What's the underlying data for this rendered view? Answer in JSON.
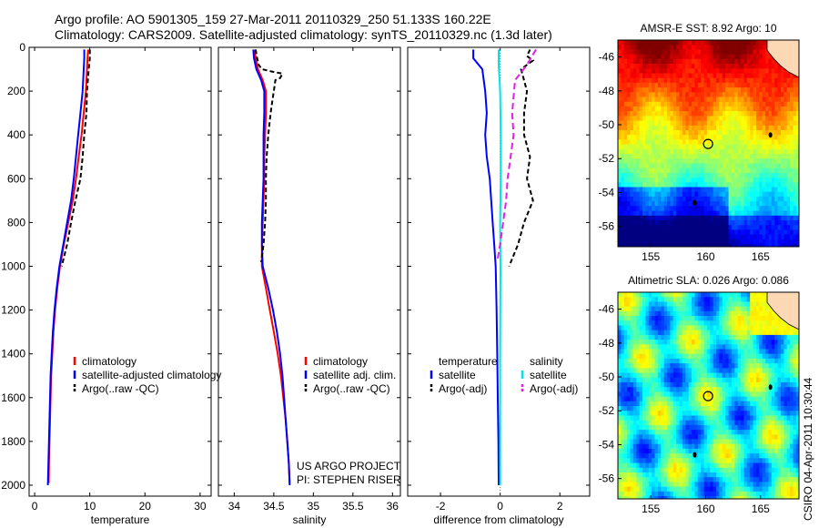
{
  "header": {
    "line1": "Argo profile: AO 5901305_159 27-Mar-2011 20110329_250 51.133S 160.22E",
    "line2": "Climatology: CARS2009. Satellite-adjusted climatology: synTS_20110329.nc (1.3d later)"
  },
  "credits": {
    "project": "US ARGO PROJECT",
    "pi": "PI: STEPHEN RISER",
    "stamp": "CSIRO 04-Apr-2011 10:30:44"
  },
  "colors": {
    "climatology": "#ff0000",
    "satellite": "#0000ff",
    "argo": "#000000",
    "satellite_salinity": "#00e5e5",
    "argo_salinity": "#e020e0"
  },
  "chart_data": [
    {
      "type": "line",
      "id": "temperature-panel",
      "xlabel": "temperature",
      "ylabel": "",
      "xlim": [
        -1,
        32
      ],
      "ylim": [
        2050,
        0
      ],
      "xticks": [
        "0",
        "10",
        "20",
        "30"
      ],
      "xtick_values": [
        0,
        10,
        20,
        30
      ],
      "yticks": [
        "0",
        "200",
        "400",
        "600",
        "800",
        "1000",
        "1200",
        "1400",
        "1600",
        "1800",
        "2000"
      ],
      "ytick_values": [
        0,
        200,
        400,
        600,
        800,
        1000,
        1200,
        1400,
        1600,
        1800,
        2000
      ],
      "legend": [
        "climatology",
        "satellite-adjusted climatology",
        "Argo(..raw -QC)"
      ],
      "series": [
        {
          "name": "climatology",
          "color": "#ff0000",
          "dash": "",
          "points": [
            [
              9.7,
              10
            ],
            [
              9.6,
              50
            ],
            [
              9.5,
              100
            ],
            [
              9.3,
              200
            ],
            [
              8.9,
              300
            ],
            [
              8.5,
              400
            ],
            [
              8.0,
              500
            ],
            [
              7.5,
              600
            ],
            [
              6.9,
              700
            ],
            [
              6.1,
              800
            ],
            [
              5.3,
              900
            ],
            [
              4.6,
              1000
            ],
            [
              4.1,
              1100
            ],
            [
              3.7,
              1200
            ],
            [
              3.4,
              1300
            ],
            [
              3.2,
              1400
            ],
            [
              3.0,
              1500
            ],
            [
              2.9,
              1600
            ],
            [
              2.8,
              1700
            ],
            [
              2.7,
              1800
            ],
            [
              2.6,
              1900
            ],
            [
              2.55,
              1990
            ]
          ]
        },
        {
          "name": "satellite-adjusted climatology",
          "color": "#0000ff",
          "dash": "",
          "points": [
            [
              9.0,
              10
            ],
            [
              9.0,
              50
            ],
            [
              8.9,
              100
            ],
            [
              8.7,
              200
            ],
            [
              8.3,
              300
            ],
            [
              7.9,
              400
            ],
            [
              7.5,
              500
            ],
            [
              7.1,
              600
            ],
            [
              6.6,
              700
            ],
            [
              5.9,
              800
            ],
            [
              5.2,
              900
            ],
            [
              4.5,
              1000
            ],
            [
              4.0,
              1100
            ],
            [
              3.6,
              1200
            ],
            [
              3.3,
              1300
            ],
            [
              3.1,
              1400
            ],
            [
              2.9,
              1500
            ],
            [
              2.8,
              1600
            ],
            [
              2.7,
              1700
            ],
            [
              2.6,
              1800
            ],
            [
              2.5,
              1900
            ],
            [
              2.4,
              2000
            ]
          ]
        },
        {
          "name": "Argo(..raw -QC)",
          "color": "#000000",
          "dash": "5,3",
          "points": [
            [
              10.0,
              10
            ],
            [
              10.0,
              50
            ],
            [
              9.8,
              100
            ],
            [
              9.5,
              200
            ],
            [
              9.4,
              300
            ],
            [
              9.0,
              400
            ],
            [
              8.7,
              500
            ],
            [
              8.3,
              600
            ],
            [
              7.4,
              700
            ],
            [
              6.6,
              800
            ],
            [
              5.9,
              900
            ],
            [
              4.9,
              1000
            ]
          ]
        }
      ]
    },
    {
      "type": "line",
      "id": "salinity-panel",
      "xlabel": "salinity",
      "xlim": [
        33.8,
        36.1
      ],
      "ylim": [
        2050,
        0
      ],
      "xticks": [
        "34",
        "34.5",
        "35",
        "35.5",
        "36"
      ],
      "xtick_values": [
        34,
        34.5,
        35,
        35.5,
        36
      ],
      "legend": [
        "climatology",
        "satellite adj. clim.",
        "Argo(..raw -QC)"
      ],
      "series": [
        {
          "name": "climatology",
          "color": "#ff0000",
          "dash": "",
          "points": [
            [
              34.26,
              10
            ],
            [
              34.27,
              50
            ],
            [
              34.3,
              100
            ],
            [
              34.36,
              150
            ],
            [
              34.4,
              200
            ],
            [
              34.4,
              300
            ],
            [
              34.39,
              400
            ],
            [
              34.38,
              500
            ],
            [
              34.38,
              600
            ],
            [
              34.37,
              700
            ],
            [
              34.36,
              800
            ],
            [
              34.35,
              900
            ],
            [
              34.35,
              1000
            ],
            [
              34.4,
              1100
            ],
            [
              34.45,
              1200
            ],
            [
              34.5,
              1300
            ],
            [
              34.55,
              1400
            ],
            [
              34.59,
              1500
            ],
            [
              34.62,
              1600
            ],
            [
              34.65,
              1700
            ],
            [
              34.67,
              1800
            ],
            [
              34.69,
              1900
            ],
            [
              34.7,
              1990
            ]
          ]
        },
        {
          "name": "satellite adj. clim.",
          "color": "#0000ff",
          "dash": "",
          "points": [
            [
              34.24,
              10
            ],
            [
              34.25,
              50
            ],
            [
              34.28,
              100
            ],
            [
              34.34,
              150
            ],
            [
              34.38,
              200
            ],
            [
              34.38,
              300
            ],
            [
              34.37,
              400
            ],
            [
              34.37,
              500
            ],
            [
              34.37,
              600
            ],
            [
              34.36,
              700
            ],
            [
              34.35,
              800
            ],
            [
              34.35,
              900
            ],
            [
              34.36,
              1000
            ],
            [
              34.43,
              1100
            ],
            [
              34.49,
              1200
            ],
            [
              34.54,
              1300
            ],
            [
              34.58,
              1400
            ],
            [
              34.61,
              1500
            ],
            [
              34.63,
              1600
            ],
            [
              34.65,
              1700
            ],
            [
              34.67,
              1800
            ],
            [
              34.69,
              1900
            ],
            [
              34.7,
              2000
            ]
          ]
        },
        {
          "name": "Argo(..raw -QC)",
          "color": "#000000",
          "dash": "5,3",
          "points": [
            [
              34.27,
              10
            ],
            [
              34.29,
              50
            ],
            [
              34.31,
              80
            ],
            [
              34.35,
              100
            ],
            [
              34.47,
              110
            ],
            [
              34.61,
              120
            ],
            [
              34.58,
              140
            ],
            [
              34.52,
              150
            ],
            [
              34.5,
              200
            ],
            [
              34.48,
              250
            ],
            [
              34.46,
              300
            ],
            [
              34.43,
              400
            ],
            [
              34.41,
              500
            ],
            [
              34.4,
              600
            ],
            [
              34.4,
              700
            ],
            [
              34.39,
              800
            ],
            [
              34.37,
              900
            ],
            [
              34.34,
              980
            ]
          ]
        }
      ]
    },
    {
      "type": "line",
      "id": "difference-panel",
      "xlabel": "difference from climatology",
      "xlim": [
        -3.1,
        3.0
      ],
      "ylim": [
        2050,
        0
      ],
      "xticks": [
        "-2",
        "0",
        "2"
      ],
      "xtick_values": [
        -2,
        0,
        2
      ],
      "legend_titles": [
        "temperature",
        "salinity"
      ],
      "legend": [
        "satellite",
        "Argo(-adj)",
        "satellite",
        "Argo(-adj)"
      ],
      "zero_line": 0,
      "series": [
        {
          "name": "satellite",
          "group": "temperature",
          "color": "#0000ff",
          "dash": "",
          "points": [
            [
              -0.9,
              10
            ],
            [
              -0.9,
              50
            ],
            [
              -0.6,
              100
            ],
            [
              -0.5,
              200
            ],
            [
              -0.45,
              300
            ],
            [
              -0.5,
              400
            ],
            [
              -0.45,
              500
            ],
            [
              -0.35,
              600
            ],
            [
              -0.3,
              700
            ],
            [
              -0.25,
              800
            ],
            [
              -0.2,
              900
            ],
            [
              -0.15,
              1000
            ],
            [
              -0.12,
              1200
            ],
            [
              -0.1,
              1400
            ],
            [
              -0.08,
              1600
            ],
            [
              -0.06,
              1800
            ],
            [
              -0.05,
              2000
            ]
          ]
        },
        {
          "name": "Argo(-adj)",
          "group": "temperature",
          "color": "#000000",
          "dash": "5,3",
          "points": [
            [
              1.0,
              10
            ],
            [
              0.9,
              40
            ],
            [
              1.1,
              60
            ],
            [
              0.7,
              100
            ],
            [
              0.9,
              200
            ],
            [
              0.8,
              300
            ],
            [
              0.8,
              400
            ],
            [
              1.0,
              500
            ],
            [
              0.9,
              600
            ],
            [
              1.1,
              700
            ],
            [
              0.8,
              800
            ],
            [
              0.6,
              900
            ],
            [
              0.3,
              1000
            ]
          ]
        },
        {
          "name": "satellite",
          "group": "salinity",
          "color": "#00e5e5",
          "dash": "",
          "points": [
            [
              -0.05,
              10
            ],
            [
              -0.05,
              80
            ],
            [
              0.0,
              200
            ],
            [
              0.02,
              400
            ],
            [
              0.02,
              600
            ],
            [
              0.0,
              800
            ],
            [
              0.01,
              1000
            ],
            [
              0.0,
              1400
            ],
            [
              0.0,
              2000
            ]
          ]
        },
        {
          "name": "Argo(-adj)",
          "group": "salinity",
          "color": "#e020e0",
          "dash": "7,4",
          "points": [
            [
              1.2,
              10
            ],
            [
              0.9,
              80
            ],
            [
              0.5,
              150
            ],
            [
              0.4,
              300
            ],
            [
              0.45,
              400
            ],
            [
              0.35,
              500
            ],
            [
              0.25,
              600
            ],
            [
              0.2,
              700
            ],
            [
              0.1,
              800
            ],
            [
              0.0,
              900
            ],
            [
              -0.1,
              980
            ]
          ]
        }
      ]
    },
    {
      "type": "heatmap",
      "id": "sst-map",
      "title": "AMSR-E SST: 8.92 Argo: 10",
      "xlim": [
        152,
        168.5
      ],
      "ylim": [
        -57.2,
        -45
      ],
      "xticks": [
        "155",
        "160",
        "165"
      ],
      "xtick_values": [
        155,
        160,
        165
      ],
      "yticks": [
        "-46",
        "-48",
        "-50",
        "-52",
        "-54",
        "-56"
      ],
      "ytick_values": [
        -46,
        -48,
        -50,
        -52,
        -54,
        -56
      ],
      "float_position": [
        160.22,
        -51.133
      ]
    },
    {
      "type": "heatmap",
      "id": "sla-map",
      "title": "Altimetric SLA: 0.026 Argo: 0.086",
      "xlim": [
        152,
        168.5
      ],
      "ylim": [
        -57.2,
        -45
      ],
      "xticks": [
        "155",
        "160",
        "165"
      ],
      "xtick_values": [
        155,
        160,
        165
      ],
      "yticks": [
        "-46",
        "-48",
        "-50",
        "-52",
        "-54",
        "-56"
      ],
      "ytick_values": [
        -46,
        -48,
        -50,
        -52,
        -54,
        -56
      ],
      "float_position": [
        160.22,
        -51.133
      ]
    }
  ]
}
